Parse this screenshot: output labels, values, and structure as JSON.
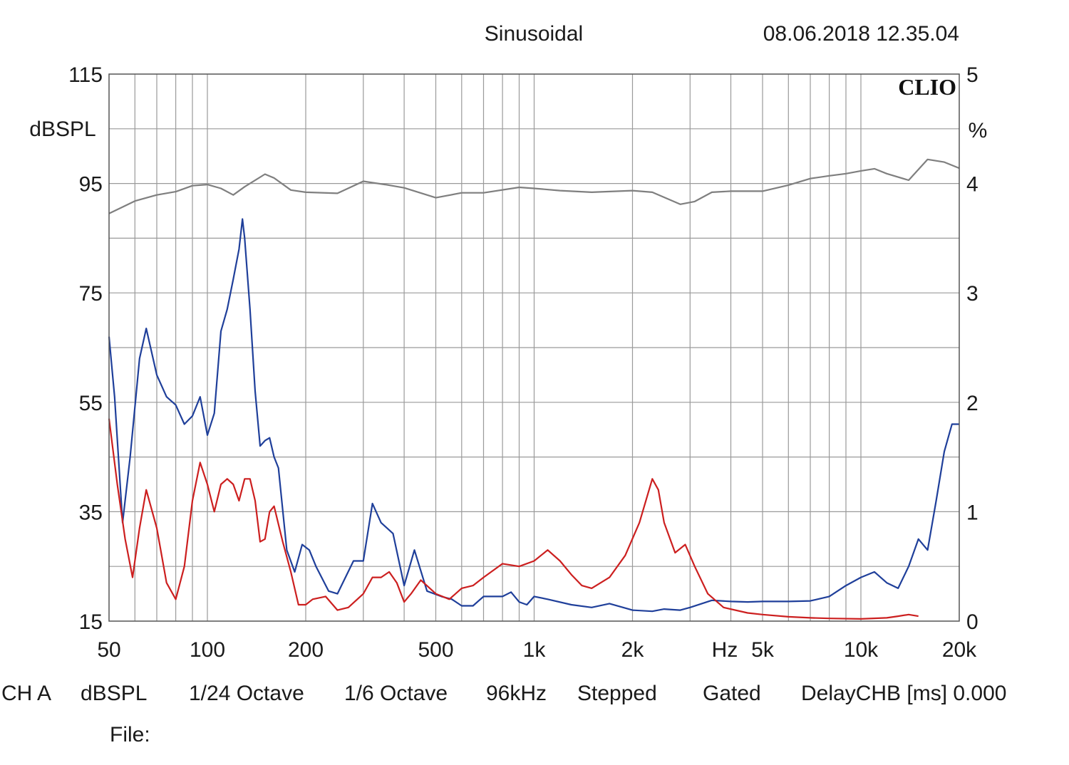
{
  "header": {
    "mode": "Sinusoidal",
    "timestamp": "08.06.2018 12.35.04"
  },
  "brand": "CLIO",
  "footer": {
    "channel": "CH A",
    "unit": "dBSPL",
    "smoothing_1": "1/24 Octave",
    "smoothing_2": "1/6 Octave",
    "sample_rate": "96kHz",
    "sweep": "Stepped",
    "window": "Gated",
    "delay": "DelayCHB [ms] 0.000",
    "file_label": "File:"
  },
  "chart_data": {
    "type": "line",
    "x_scale": "log",
    "xlim": [
      50,
      20000
    ],
    "ylim": [
      15,
      115
    ],
    "y2lim": [
      0,
      5
    ],
    "grid": true,
    "ylabel": "dBSPL",
    "y2label": "%",
    "xunit": "Hz",
    "x_ticks": [
      {
        "value": 50,
        "label": "50"
      },
      {
        "value": 100,
        "label": "100"
      },
      {
        "value": 200,
        "label": "200"
      },
      {
        "value": 500,
        "label": "500"
      },
      {
        "value": 1000,
        "label": "1k"
      },
      {
        "value": 2000,
        "label": "2k"
      },
      {
        "value": 5000,
        "label": "5k"
      },
      {
        "value": 10000,
        "label": "10k"
      },
      {
        "value": 20000,
        "label": "20k"
      }
    ],
    "y_ticks": [
      "115",
      "95",
      "75",
      "55",
      "35",
      "15"
    ],
    "y2_ticks": [
      "5",
      "4",
      "3",
      "2",
      "1",
      "0"
    ],
    "series": [
      {
        "color": "#7f7f7f",
        "axis": "left",
        "points": [
          [
            50,
            89.5
          ],
          [
            55,
            90.7
          ],
          [
            60,
            91.8
          ],
          [
            70,
            92.9
          ],
          [
            80,
            93.5
          ],
          [
            90,
            94.6
          ],
          [
            100,
            94.8
          ],
          [
            110,
            94.1
          ],
          [
            120,
            92.9
          ],
          [
            130,
            94.4
          ],
          [
            150,
            96.7
          ],
          [
            160,
            96
          ],
          [
            180,
            93.8
          ],
          [
            200,
            93.4
          ],
          [
            250,
            93.2
          ],
          [
            300,
            95.4
          ],
          [
            350,
            94.8
          ],
          [
            400,
            94.2
          ],
          [
            500,
            92.4
          ],
          [
            600,
            93.3
          ],
          [
            700,
            93.3
          ],
          [
            900,
            94.3
          ],
          [
            1000,
            94.1
          ],
          [
            1200,
            93.7
          ],
          [
            1500,
            93.4
          ],
          [
            2000,
            93.7
          ],
          [
            2300,
            93.4
          ],
          [
            2800,
            91.2
          ],
          [
            3100,
            91.7
          ],
          [
            3500,
            93.4
          ],
          [
            4000,
            93.6
          ],
          [
            5000,
            93.6
          ],
          [
            6000,
            94.7
          ],
          [
            7000,
            95.9
          ],
          [
            8000,
            96.4
          ],
          [
            9000,
            96.8
          ],
          [
            10000,
            97.3
          ],
          [
            11000,
            97.7
          ],
          [
            12000,
            96.8
          ],
          [
            14000,
            95.6
          ],
          [
            16000,
            99.4
          ],
          [
            18000,
            98.9
          ],
          [
            20000,
            97.8
          ]
        ]
      },
      {
        "color": "#1f3f9a",
        "axis": "left",
        "points": [
          [
            50,
            67
          ],
          [
            52,
            56
          ],
          [
            55,
            33
          ],
          [
            58,
            45
          ],
          [
            62,
            63
          ],
          [
            65,
            68.5
          ],
          [
            70,
            60
          ],
          [
            75,
            56
          ],
          [
            80,
            54.5
          ],
          [
            85,
            51
          ],
          [
            90,
            52.5
          ],
          [
            95,
            56
          ],
          [
            100,
            49
          ],
          [
            105,
            53
          ],
          [
            110,
            68
          ],
          [
            115,
            72
          ],
          [
            120,
            77.5
          ],
          [
            125,
            83
          ],
          [
            128,
            88.5
          ],
          [
            130,
            85
          ],
          [
            135,
            72
          ],
          [
            140,
            57
          ],
          [
            145,
            47
          ],
          [
            150,
            48
          ],
          [
            155,
            48.5
          ],
          [
            160,
            45
          ],
          [
            165,
            43
          ],
          [
            175,
            28
          ],
          [
            185,
            24
          ],
          [
            195,
            29
          ],
          [
            205,
            28
          ],
          [
            215,
            25
          ],
          [
            235,
            20.5
          ],
          [
            250,
            20
          ],
          [
            280,
            26
          ],
          [
            300,
            26
          ],
          [
            320,
            36.5
          ],
          [
            340,
            33
          ],
          [
            370,
            31
          ],
          [
            400,
            21.5
          ],
          [
            430,
            28
          ],
          [
            470,
            20.5
          ],
          [
            520,
            19.5
          ],
          [
            560,
            19
          ],
          [
            600,
            17.8
          ],
          [
            650,
            17.8
          ],
          [
            700,
            19.5
          ],
          [
            800,
            19.5
          ],
          [
            850,
            20.3
          ],
          [
            900,
            18.5
          ],
          [
            950,
            18
          ],
          [
            1000,
            19.5
          ],
          [
            1100,
            19
          ],
          [
            1300,
            18
          ],
          [
            1500,
            17.5
          ],
          [
            1700,
            18.2
          ],
          [
            2000,
            17
          ],
          [
            2300,
            16.8
          ],
          [
            2500,
            17.2
          ],
          [
            2800,
            17
          ],
          [
            3000,
            17.5
          ],
          [
            3500,
            18.8
          ],
          [
            4000,
            18.6
          ],
          [
            4500,
            18.5
          ],
          [
            5000,
            18.6
          ],
          [
            6000,
            18.6
          ],
          [
            7000,
            18.7
          ],
          [
            8000,
            19.5
          ],
          [
            9000,
            21.5
          ],
          [
            10000,
            23
          ],
          [
            11000,
            24
          ],
          [
            12000,
            22
          ],
          [
            13000,
            21
          ],
          [
            14000,
            25
          ],
          [
            15000,
            30
          ],
          [
            16000,
            28
          ],
          [
            17000,
            37
          ],
          [
            18000,
            46
          ],
          [
            19000,
            51
          ],
          [
            20000,
            51
          ]
        ]
      },
      {
        "color": "#cc1f1f",
        "axis": "left",
        "points": [
          [
            50,
            52
          ],
          [
            53,
            40
          ],
          [
            56,
            30
          ],
          [
            59,
            23
          ],
          [
            62,
            32
          ],
          [
            65,
            39
          ],
          [
            70,
            32
          ],
          [
            75,
            22
          ],
          [
            80,
            19
          ],
          [
            85,
            25
          ],
          [
            90,
            37
          ],
          [
            95,
            44
          ],
          [
            100,
            40
          ],
          [
            105,
            35
          ],
          [
            110,
            40
          ],
          [
            115,
            41
          ],
          [
            120,
            40
          ],
          [
            125,
            37
          ],
          [
            130,
            41
          ],
          [
            135,
            41
          ],
          [
            140,
            37
          ],
          [
            145,
            29.5
          ],
          [
            150,
            30
          ],
          [
            155,
            35
          ],
          [
            160,
            36
          ],
          [
            170,
            29.5
          ],
          [
            180,
            24
          ],
          [
            190,
            18
          ],
          [
            200,
            18
          ],
          [
            210,
            19
          ],
          [
            230,
            19.5
          ],
          [
            250,
            17
          ],
          [
            270,
            17.5
          ],
          [
            300,
            20
          ],
          [
            320,
            23
          ],
          [
            340,
            23
          ],
          [
            360,
            24
          ],
          [
            380,
            22
          ],
          [
            400,
            18.5
          ],
          [
            420,
            20
          ],
          [
            450,
            22.5
          ],
          [
            500,
            20
          ],
          [
            550,
            19
          ],
          [
            600,
            21
          ],
          [
            650,
            21.5
          ],
          [
            700,
            23
          ],
          [
            800,
            25.5
          ],
          [
            900,
            25
          ],
          [
            1000,
            26
          ],
          [
            1100,
            28
          ],
          [
            1200,
            26
          ],
          [
            1300,
            23.5
          ],
          [
            1400,
            21.5
          ],
          [
            1500,
            21
          ],
          [
            1700,
            23
          ],
          [
            1900,
            27
          ],
          [
            2100,
            33
          ],
          [
            2300,
            41
          ],
          [
            2400,
            39
          ],
          [
            2500,
            33
          ],
          [
            2700,
            27.5
          ],
          [
            2900,
            29
          ],
          [
            3100,
            25
          ],
          [
            3400,
            20
          ],
          [
            3800,
            17.5
          ],
          [
            4500,
            16.5
          ],
          [
            5000,
            16.2
          ],
          [
            6000,
            15.8
          ],
          [
            7000,
            15.6
          ],
          [
            8000,
            15.5
          ],
          [
            10000,
            15.4
          ],
          [
            12000,
            15.6
          ],
          [
            13000,
            15.9
          ],
          [
            14000,
            16.2
          ],
          [
            15000,
            15.9
          ]
        ]
      }
    ]
  }
}
